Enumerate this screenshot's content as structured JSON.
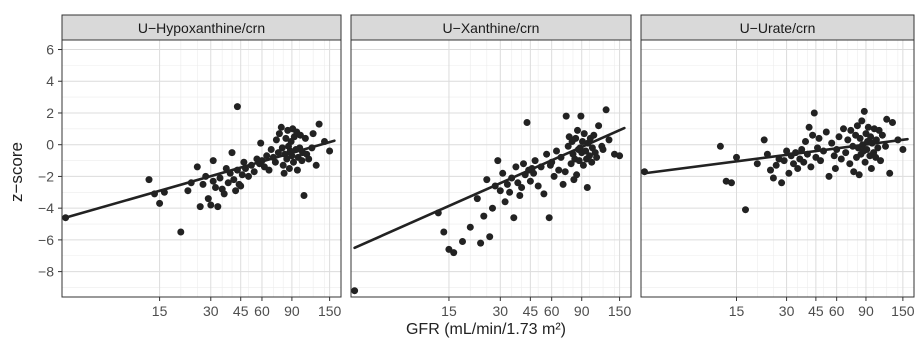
{
  "chart_data": {
    "type": "scatter",
    "ylabel": "z−score",
    "xlabel": "GFR (mL/min/1.73 m²)",
    "x_scale": "log",
    "xlim": [
      4,
      175
    ],
    "ylim": [
      -9.6,
      6.6
    ],
    "x_ticks": [
      15,
      30,
      45,
      60,
      90,
      150
    ],
    "x_tick_labels": [
      "15",
      "30",
      "45",
      "60",
      "90",
      "150"
    ],
    "y_ticks": [
      -8,
      -6,
      -4,
      -2,
      0,
      2,
      4,
      6
    ],
    "y_tick_labels": [
      "−8",
      "−6",
      "−4",
      "−2",
      "0",
      "2",
      "4",
      "6"
    ],
    "grid": true,
    "marker_color": "#222222",
    "line_color": "#222222",
    "panels": [
      {
        "title": "U−Hypoxanthine/crn",
        "trend_line": [
          [
            4.2,
            -4.6
          ],
          [
            160,
            0.25
          ]
        ],
        "points": [
          [
            4.2,
            -4.6
          ],
          [
            13,
            -2.2
          ],
          [
            14,
            -3.1
          ],
          [
            15,
            -3.7
          ],
          [
            16,
            -3.0
          ],
          [
            20,
            -5.5
          ],
          [
            22,
            -2.9
          ],
          [
            23,
            -2.4
          ],
          [
            25,
            -1.4
          ],
          [
            26,
            -3.9
          ],
          [
            27,
            -2.5
          ],
          [
            28,
            -2.0
          ],
          [
            29,
            -3.4
          ],
          [
            30,
            -3.8
          ],
          [
            31,
            -2.3
          ],
          [
            31,
            -1.0
          ],
          [
            32,
            -2.7
          ],
          [
            33,
            -3.9
          ],
          [
            34,
            -2.1
          ],
          [
            35,
            -2.8
          ],
          [
            36,
            -3.1
          ],
          [
            37,
            -1.5
          ],
          [
            38,
            -2.4
          ],
          [
            39,
            -1.8
          ],
          [
            40,
            -0.5
          ],
          [
            41,
            -2.2
          ],
          [
            42,
            -2.9
          ],
          [
            43,
            -1.6
          ],
          [
            43,
            2.4
          ],
          [
            44,
            -2.5
          ],
          [
            45,
            -2.6
          ],
          [
            46,
            -1.9
          ],
          [
            47,
            -1.1
          ],
          [
            48,
            -1.5
          ],
          [
            50,
            -2.0
          ],
          [
            52,
            -1.3
          ],
          [
            54,
            -1.7
          ],
          [
            56,
            -0.9
          ],
          [
            58,
            -1.2
          ],
          [
            59,
            0.1
          ],
          [
            60,
            -1.0
          ],
          [
            62,
            -1.4
          ],
          [
            64,
            -0.7
          ],
          [
            66,
            -1.6
          ],
          [
            68,
            -0.3
          ],
          [
            70,
            -0.8
          ],
          [
            72,
            -1.1
          ],
          [
            73,
            0.3
          ],
          [
            75,
            -0.5
          ],
          [
            76,
            0.7
          ],
          [
            78,
            1.1
          ],
          [
            79,
            -0.2
          ],
          [
            80,
            -1.3
          ],
          [
            81,
            -1.8
          ],
          [
            82,
            -0.6
          ],
          [
            83,
            0.4
          ],
          [
            84,
            -0.9
          ],
          [
            85,
            0.9
          ],
          [
            86,
            -0.1
          ],
          [
            87,
            -1.5
          ],
          [
            88,
            -0.4
          ],
          [
            89,
            0.2
          ],
          [
            90,
            -0.7
          ],
          [
            91,
            1.0
          ],
          [
            92,
            -1.1
          ],
          [
            93,
            0.5
          ],
          [
            95,
            -0.3
          ],
          [
            96,
            0.8
          ],
          [
            97,
            -1.6
          ],
          [
            98,
            -0.8
          ],
          [
            100,
            -0.2
          ],
          [
            101,
            0.6
          ],
          [
            103,
            -1.0
          ],
          [
            104,
            -0.5
          ],
          [
            106,
            -3.2
          ],
          [
            108,
            0.4
          ],
          [
            110,
            -0.6
          ],
          [
            113,
            -0.9
          ],
          [
            118,
            -0.2
          ],
          [
            120,
            0.7
          ],
          [
            125,
            -1.3
          ],
          [
            130,
            1.3
          ],
          [
            140,
            0.2
          ],
          [
            150,
            -0.4
          ]
        ]
      },
      {
        "title": "U−Xanthine/crn",
        "trend_line": [
          [
            4.2,
            -6.5
          ],
          [
            160,
            1.05
          ]
        ],
        "points": [
          [
            4.2,
            -9.2
          ],
          [
            13,
            -4.3
          ],
          [
            14,
            -5.5
          ],
          [
            15,
            -6.6
          ],
          [
            16,
            -6.8
          ],
          [
            18,
            -6.1
          ],
          [
            20,
            -5.2
          ],
          [
            22,
            -3.4
          ],
          [
            23,
            -6.2
          ],
          [
            24,
            -4.5
          ],
          [
            25,
            -2.2
          ],
          [
            26,
            -5.8
          ],
          [
            27,
            -4.0
          ],
          [
            28,
            -2.6
          ],
          [
            29,
            -1.0
          ],
          [
            30,
            -2.9
          ],
          [
            31,
            -1.8
          ],
          [
            32,
            -3.6
          ],
          [
            33,
            -2.5
          ],
          [
            34,
            -3.0
          ],
          [
            35,
            -2.1
          ],
          [
            36,
            -4.6
          ],
          [
            37,
            -1.4
          ],
          [
            38,
            -2.4
          ],
          [
            39,
            -3.2
          ],
          [
            40,
            -2.7
          ],
          [
            41,
            -1.2
          ],
          [
            42,
            -1.9
          ],
          [
            43,
            1.4
          ],
          [
            44,
            -1.6
          ],
          [
            45,
            -2.3
          ],
          [
            46,
            -1.5
          ],
          [
            47,
            -1.8
          ],
          [
            48,
            -1.0
          ],
          [
            50,
            -2.6
          ],
          [
            52,
            -1.4
          ],
          [
            54,
            -3.1
          ],
          [
            56,
            -0.6
          ],
          [
            58,
            -4.6
          ],
          [
            59,
            -1.3
          ],
          [
            60,
            -1.1
          ],
          [
            62,
            -2.0
          ],
          [
            64,
            -0.4
          ],
          [
            66,
            -1.6
          ],
          [
            68,
            -0.8
          ],
          [
            70,
            -2.5
          ],
          [
            72,
            -1.7
          ],
          [
            73,
            1.8
          ],
          [
            75,
            -0.1
          ],
          [
            76,
            0.5
          ],
          [
            78,
            -1.2
          ],
          [
            79,
            0.2
          ],
          [
            80,
            -0.6
          ],
          [
            81,
            -2.2
          ],
          [
            82,
            -0.9
          ],
          [
            83,
            0.4
          ],
          [
            84,
            -1.9
          ],
          [
            85,
            0.9
          ],
          [
            86,
            -0.3
          ],
          [
            87,
            -1.0
          ],
          [
            88,
            -0.2
          ],
          [
            89,
            1.8
          ],
          [
            90,
            -0.5
          ],
          [
            91,
            0.2
          ],
          [
            92,
            -1.3
          ],
          [
            93,
            0.7
          ],
          [
            95,
            -0.4
          ],
          [
            96,
            -0.9
          ],
          [
            97,
            -2.7
          ],
          [
            98,
            0.1
          ],
          [
            100,
            -0.7
          ],
          [
            101,
            0.4
          ],
          [
            103,
            -1.1
          ],
          [
            104,
            -0.2
          ],
          [
            106,
            0.6
          ],
          [
            108,
            -0.5
          ],
          [
            110,
            -0.8
          ],
          [
            113,
            1.2
          ],
          [
            118,
            -0.1
          ],
          [
            120,
            -0.3
          ],
          [
            125,
            2.2
          ],
          [
            130,
            0.3
          ],
          [
            140,
            -0.6
          ],
          [
            150,
            -0.7
          ]
        ]
      },
      {
        "title": "U−Urate/crn",
        "trend_line": [
          [
            4.2,
            -1.8
          ],
          [
            160,
            0.35
          ]
        ],
        "points": [
          [
            4.2,
            -1.7
          ],
          [
            12,
            -0.1
          ],
          [
            13,
            -2.3
          ],
          [
            14,
            -2.4
          ],
          [
            15,
            -0.8
          ],
          [
            17,
            -4.1
          ],
          [
            20,
            -1.2
          ],
          [
            22,
            0.3
          ],
          [
            23,
            -0.6
          ],
          [
            24,
            -1.6
          ],
          [
            25,
            -2.1
          ],
          [
            26,
            -1.3
          ],
          [
            27,
            -0.9
          ],
          [
            28,
            -2.4
          ],
          [
            29,
            -1.0
          ],
          [
            30,
            -0.4
          ],
          [
            31,
            -1.8
          ],
          [
            32,
            -0.7
          ],
          [
            33,
            -1.2
          ],
          [
            34,
            -0.5
          ],
          [
            35,
            -1.5
          ],
          [
            36,
            -0.9
          ],
          [
            37,
            -0.3
          ],
          [
            38,
            -1.1
          ],
          [
            39,
            0.2
          ],
          [
            40,
            -0.6
          ],
          [
            41,
            1.1
          ],
          [
            42,
            -1.4
          ],
          [
            43,
            0.6
          ],
          [
            44,
            2.0
          ],
          [
            45,
            -0.8
          ],
          [
            46,
            -0.2
          ],
          [
            47,
            0.4
          ],
          [
            48,
            -1.0
          ],
          [
            50,
            -0.4
          ],
          [
            52,
            0.8
          ],
          [
            54,
            -2.0
          ],
          [
            56,
            0.1
          ],
          [
            58,
            -0.7
          ],
          [
            59,
            -1.5
          ],
          [
            60,
            -0.3
          ],
          [
            62,
            0.5
          ],
          [
            64,
            -0.9
          ],
          [
            66,
            1.0
          ],
          [
            68,
            -0.5
          ],
          [
            70,
            0.3
          ],
          [
            72,
            -1.2
          ],
          [
            73,
            0.9
          ],
          [
            75,
            -0.1
          ],
          [
            76,
            -1.7
          ],
          [
            78,
            0.6
          ],
          [
            79,
            -0.8
          ],
          [
            80,
            1.2
          ],
          [
            81,
            -0.2
          ],
          [
            82,
            -1.9
          ],
          [
            83,
            0.4
          ],
          [
            84,
            -0.6
          ],
          [
            85,
            1.5
          ],
          [
            86,
            0.0
          ],
          [
            87,
            -0.4
          ],
          [
            88,
            2.1
          ],
          [
            89,
            -1.1
          ],
          [
            90,
            0.7
          ],
          [
            91,
            -0.3
          ],
          [
            92,
            0.2
          ],
          [
            93,
            1.1
          ],
          [
            95,
            -0.7
          ],
          [
            96,
            0.5
          ],
          [
            97,
            -1.5
          ],
          [
            98,
            0.1
          ],
          [
            100,
            -0.5
          ],
          [
            101,
            1.0
          ],
          [
            103,
            -0.8
          ],
          [
            104,
            0.3
          ],
          [
            106,
            -0.2
          ],
          [
            108,
            0.9
          ],
          [
            110,
            -1.0
          ],
          [
            113,
            0.6
          ],
          [
            118,
            -0.1
          ],
          [
            120,
            1.6
          ],
          [
            125,
            -1.8
          ],
          [
            130,
            1.4
          ],
          [
            140,
            0.3
          ],
          [
            150,
            -0.3
          ]
        ]
      }
    ]
  }
}
